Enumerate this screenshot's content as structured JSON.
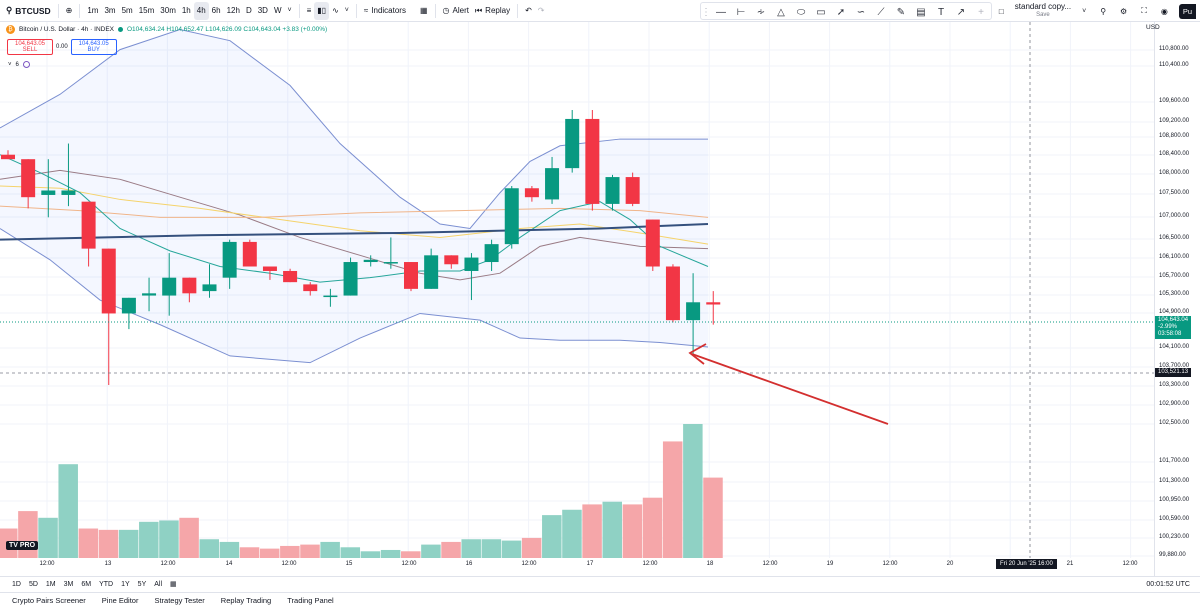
{
  "toolbar": {
    "symbol": "BTCUSD",
    "intervals": [
      "1m",
      "3m",
      "5m",
      "15m",
      "30m",
      "1h",
      "4h",
      "6h",
      "12h",
      "D",
      "3D",
      "W"
    ],
    "active_interval": "4h",
    "indicators_label": "Indicators",
    "alert_label": "Alert",
    "replay_label": "Replay",
    "layout_name": "standard copy...",
    "layout_sub": "Save",
    "publish_label": "Pu"
  },
  "legend": {
    "title": "Bitcoin / U.S. Dollar · 4h · INDEX",
    "ohlc": "O104,634.24 H104,652.47 L104,626.09 C104,643.04 +3.83 (+0.00%)",
    "sell_price": "104,643.05",
    "sell_label": "SELL",
    "spread": "0.00",
    "buy_price": "104,643.05",
    "buy_label": "BUY",
    "indicator_count": "6"
  },
  "price_axis": {
    "currency": "USD",
    "ticks": [
      "110,800.00",
      "110,400.00",
      "109,600.00",
      "109,200.00",
      "108,800.00",
      "108,400.00",
      "108,000.00",
      "107,500.00",
      "107,000.00",
      "106,500.00",
      "106,100.00",
      "105,700.00",
      "105,300.00",
      "104,900.00",
      "104,100.00",
      "103,700.00",
      "103,300.00",
      "102,900.00",
      "102,500.00",
      "101,700.00",
      "101,300.00",
      "100,950.00",
      "100,590.00",
      "100,230.00",
      "99,880.00"
    ],
    "current_price": "104,643.04",
    "current_change": "-2.99%",
    "countdown": "03:58:08",
    "crosshair_price": "103,521.13"
  },
  "time_axis": {
    "ticks": [
      "12:00",
      "13",
      "12:00",
      "14",
      "12:00",
      "15",
      "12:00",
      "16",
      "12:00",
      "17",
      "12:00",
      "18",
      "12:00",
      "19",
      "12:00",
      "20",
      "21",
      "12:00"
    ],
    "crosshair_label": "Fri 20 Jun '25    16:00"
  },
  "ranges": [
    "1D",
    "5D",
    "1M",
    "3M",
    "6M",
    "YTD",
    "1Y",
    "5Y",
    "All"
  ],
  "clock": "00:01:52 UTC",
  "footer_tabs": [
    "Crypto Pairs Screener",
    "Pine Editor",
    "Strategy Tester",
    "Replay Trading",
    "Trading Panel"
  ],
  "logo_text": "TV PRO",
  "colors": {
    "up": "#089981",
    "down": "#f23645",
    "up_vol": "#8fd1c4",
    "down_vol": "#f5a6a9",
    "arrow": "#d32f2f"
  },
  "chart_data": {
    "type": "candlestick",
    "candles": [
      {
        "o": 107950,
        "h": 108050,
        "l": 107850,
        "c": 107850
      },
      {
        "o": 107850,
        "h": 107850,
        "l": 106750,
        "c": 107000
      },
      {
        "o": 107050,
        "h": 107850,
        "l": 106550,
        "c": 107150
      },
      {
        "o": 107050,
        "h": 108200,
        "l": 106800,
        "c": 107150
      },
      {
        "o": 106900,
        "h": 106900,
        "l": 105450,
        "c": 105850
      },
      {
        "o": 105850,
        "h": 105850,
        "l": 102800,
        "c": 104400
      },
      {
        "o": 104400,
        "h": 104750,
        "l": 104050,
        "c": 104750
      },
      {
        "o": 104800,
        "h": 105200,
        "l": 104450,
        "c": 104850
      },
      {
        "o": 104800,
        "h": 105750,
        "l": 104350,
        "c": 105200
      },
      {
        "o": 105200,
        "h": 105200,
        "l": 104650,
        "c": 104850
      },
      {
        "o": 104900,
        "h": 105500,
        "l": 104750,
        "c": 105050
      },
      {
        "o": 105200,
        "h": 106050,
        "l": 104950,
        "c": 106000
      },
      {
        "o": 106000,
        "h": 106050,
        "l": 105450,
        "c": 105450
      },
      {
        "o": 105450,
        "h": 105450,
        "l": 105150,
        "c": 105350
      },
      {
        "o": 105350,
        "h": 105400,
        "l": 105100,
        "c": 105100
      },
      {
        "o": 105050,
        "h": 105100,
        "l": 104800,
        "c": 104900
      },
      {
        "o": 104800,
        "h": 104950,
        "l": 104550,
        "c": 104800
      },
      {
        "o": 104800,
        "h": 105650,
        "l": 104800,
        "c": 105550
      },
      {
        "o": 105550,
        "h": 105700,
        "l": 105450,
        "c": 105600
      },
      {
        "o": 105550,
        "h": 106100,
        "l": 105400,
        "c": 105550
      },
      {
        "o": 105550,
        "h": 105550,
        "l": 104900,
        "c": 104950
      },
      {
        "o": 104950,
        "h": 105850,
        "l": 104950,
        "c": 105700
      },
      {
        "o": 105700,
        "h": 105700,
        "l": 105400,
        "c": 105500
      },
      {
        "o": 105350,
        "h": 105750,
        "l": 104700,
        "c": 105650
      },
      {
        "o": 105550,
        "h": 106050,
        "l": 105350,
        "c": 105950
      },
      {
        "o": 105950,
        "h": 107250,
        "l": 105850,
        "c": 107200
      },
      {
        "o": 107200,
        "h": 107250,
        "l": 106900,
        "c": 107000
      },
      {
        "o": 106950,
        "h": 107900,
        "l": 106850,
        "c": 107650
      },
      {
        "o": 107650,
        "h": 108950,
        "l": 107550,
        "c": 108750
      },
      {
        "o": 108750,
        "h": 108950,
        "l": 106700,
        "c": 106850
      },
      {
        "o": 106850,
        "h": 107500,
        "l": 106700,
        "c": 107450
      },
      {
        "o": 107450,
        "h": 107550,
        "l": 106800,
        "c": 106850
      },
      {
        "o": 106500,
        "h": 106500,
        "l": 105350,
        "c": 105450
      },
      {
        "o": 105450,
        "h": 105500,
        "l": 104200,
        "c": 104250
      },
      {
        "o": 104250,
        "h": 105300,
        "l": 103500,
        "c": 104650
      },
      {
        "o": 104650,
        "h": 104900,
        "l": 104150,
        "c": 104600
      }
    ],
    "volumes": [
      0.22,
      0.35,
      0.3,
      0.7,
      0.22,
      0.21,
      0.21,
      0.27,
      0.28,
      0.3,
      0.14,
      0.12,
      0.08,
      0.07,
      0.09,
      0.1,
      0.12,
      0.08,
      0.05,
      0.06,
      0.05,
      0.1,
      0.12,
      0.14,
      0.14,
      0.13,
      0.15,
      0.32,
      0.36,
      0.4,
      0.42,
      0.4,
      0.45,
      0.87,
      1.0,
      0.6
    ]
  }
}
